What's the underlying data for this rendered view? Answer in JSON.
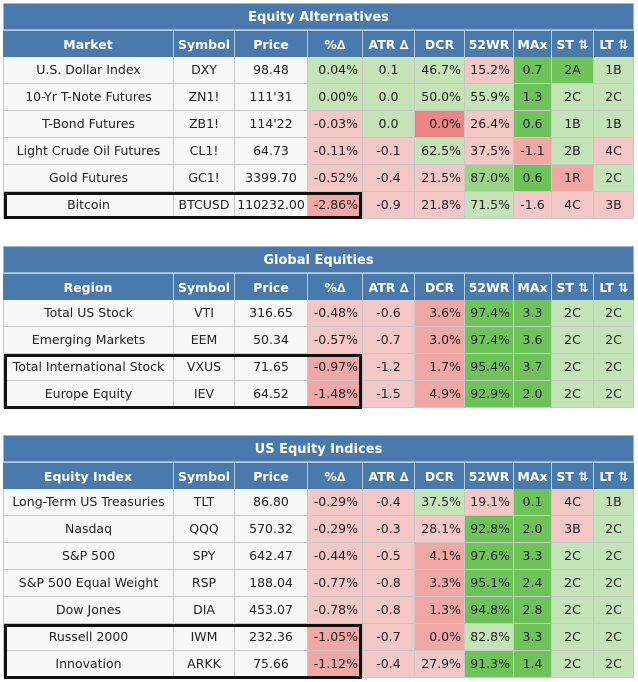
{
  "columns": [
    "Symbol",
    "Price",
    "%∆",
    "ATR ∆",
    "DCR",
    "52WR",
    "MAx",
    "ST ⇅",
    "LT ⇅"
  ],
  "tables": [
    {
      "title": "Equity Alternatives",
      "first_header": "Market",
      "rows": [
        {
          "name": "U.S. Dollar Index",
          "symbol": "DXY",
          "price": "98.48",
          "pct": "0.04%",
          "atr": "0.1",
          "dcr": "46.7%",
          "wr": "15.2%",
          "max": "0.7",
          "st": "2A",
          "lt": "1B",
          "bg": [
            "white",
            "white",
            "white",
            "g-lt",
            "g-lt",
            "g-lt",
            "r-lt",
            "g-dk",
            "g-dk",
            "g-lt"
          ]
        },
        {
          "name": "10-Yr T-Note Futures",
          "symbol": "ZN1!",
          "price": "111'31",
          "pct": "0.00%",
          "atr": "0.0",
          "dcr": "50.0%",
          "wr": "55.9%",
          "max": "1.3",
          "st": "2C",
          "lt": "2C",
          "bg": [
            "white",
            "white",
            "white",
            "g-lt",
            "g-lt",
            "g-lt",
            "g-lt",
            "g-dk",
            "g-lt",
            "g-lt"
          ]
        },
        {
          "name": "T-Bond Futures",
          "symbol": "ZB1!",
          "price": "114'22",
          "pct": "-0.03%",
          "atr": "0.0",
          "dcr": "0.0%",
          "wr": "26.4%",
          "max": "0.6",
          "st": "1B",
          "lt": "1B",
          "bg": [
            "white",
            "white",
            "white",
            "r-lt",
            "g-lt",
            "r-dk",
            "r-lt",
            "g-dk",
            "g-lt",
            "g-lt"
          ]
        },
        {
          "name": "Light Crude Oil Futures",
          "symbol": "CL1!",
          "price": "64.73",
          "pct": "-0.11%",
          "atr": "-0.1",
          "dcr": "62.5%",
          "wr": "37.5%",
          "max": "-1.1",
          "st": "2B",
          "lt": "4C",
          "bg": [
            "white",
            "white",
            "white",
            "r-lt",
            "r-lt",
            "g-lt",
            "r-lt",
            "r-md",
            "g-lt",
            "r-lt"
          ]
        },
        {
          "name": "Gold Futures",
          "symbol": "GC1!",
          "price": "3399.70",
          "pct": "-0.52%",
          "atr": "-0.4",
          "dcr": "21.5%",
          "wr": "87.0%",
          "max": "0.6",
          "st": "1R",
          "lt": "2C",
          "bg": [
            "white",
            "white",
            "white",
            "r-lt",
            "r-lt",
            "r-lt",
            "g-md",
            "g-dk",
            "r-md",
            "g-lt"
          ]
        },
        {
          "name": "Bitcoin",
          "symbol": "BTCUSD",
          "price": "110232.00",
          "pct": "-2.86%",
          "atr": "-0.9",
          "dcr": "21.8%",
          "wr": "71.5%",
          "max": "-1.6",
          "st": "4C",
          "lt": "3B",
          "bg": [
            "white",
            "white",
            "white",
            "r-md",
            "r-lt",
            "r-lt",
            "g-lt",
            "r-lt",
            "r-lt",
            "r-lt"
          ]
        }
      ]
    },
    {
      "title": "Global Equities",
      "first_header": "Region",
      "rows": [
        {
          "name": "Total US Stock",
          "symbol": "VTI",
          "price": "316.65",
          "pct": "-0.48%",
          "atr": "-0.6",
          "dcr": "3.6%",
          "wr": "97.4%",
          "max": "3.3",
          "st": "2C",
          "lt": "2C",
          "bg": [
            "white",
            "white",
            "white",
            "r-lt",
            "r-lt",
            "r-md",
            "g-dk",
            "g-dk",
            "g-lt",
            "g-lt"
          ]
        },
        {
          "name": "Emerging Markets",
          "symbol": "EEM",
          "price": "50.34",
          "pct": "-0.57%",
          "atr": "-0.7",
          "dcr": "3.0%",
          "wr": "97.4%",
          "max": "3.6",
          "st": "2C",
          "lt": "2C",
          "bg": [
            "white",
            "white",
            "white",
            "r-lt",
            "r-lt",
            "r-md",
            "g-dk",
            "g-dk",
            "g-lt",
            "g-lt"
          ]
        },
        {
          "name": "Total International Stock",
          "symbol": "VXUS",
          "price": "71.65",
          "pct": "-0.97%",
          "atr": "-1.2",
          "dcr": "1.7%",
          "wr": "95.4%",
          "max": "3.7",
          "st": "2C",
          "lt": "2C",
          "bg": [
            "white",
            "white",
            "white",
            "r-md",
            "r-lt",
            "r-md",
            "g-dk",
            "g-dk",
            "g-lt",
            "g-lt"
          ]
        },
        {
          "name": "Europe Equity",
          "symbol": "IEV",
          "price": "64.52",
          "pct": "-1.48%",
          "atr": "-1.5",
          "dcr": "4.9%",
          "wr": "92.9%",
          "max": "2.0",
          "st": "2C",
          "lt": "2C",
          "bg": [
            "white",
            "white",
            "white",
            "r-md",
            "r-lt",
            "r-md",
            "g-dk",
            "g-dk",
            "g-lt",
            "g-lt"
          ]
        }
      ]
    },
    {
      "title": "US Equity Indices",
      "first_header": "Equity Index",
      "rows": [
        {
          "name": "Long-Term US Treasuries",
          "symbol": "TLT",
          "price": "86.80",
          "pct": "-0.29%",
          "atr": "-0.4",
          "dcr": "37.5%",
          "wr": "19.1%",
          "max": "0.1",
          "st": "4C",
          "lt": "1B",
          "bg": [
            "white",
            "white",
            "white",
            "r-lt",
            "r-lt",
            "g-lt",
            "r-lt",
            "g-dk",
            "r-lt",
            "g-lt"
          ]
        },
        {
          "name": "Nasdaq",
          "symbol": "QQQ",
          "price": "570.32",
          "pct": "-0.29%",
          "atr": "-0.3",
          "dcr": "28.1%",
          "wr": "92.8%",
          "max": "2.0",
          "st": "3B",
          "lt": "2C",
          "bg": [
            "white",
            "white",
            "white",
            "r-lt",
            "r-lt",
            "r-lt",
            "g-dk",
            "g-dk",
            "r-lt",
            "g-lt"
          ]
        },
        {
          "name": "S&P 500",
          "symbol": "SPY",
          "price": "642.47",
          "pct": "-0.44%",
          "atr": "-0.5",
          "dcr": "4.1%",
          "wr": "97.6%",
          "max": "3.3",
          "st": "2C",
          "lt": "2C",
          "bg": [
            "white",
            "white",
            "white",
            "r-lt",
            "r-lt",
            "r-md",
            "g-dk",
            "g-dk",
            "g-lt",
            "g-lt"
          ]
        },
        {
          "name": "S&P 500 Equal Weight",
          "symbol": "RSP",
          "price": "188.04",
          "pct": "-0.77%",
          "atr": "-0.8",
          "dcr": "3.3%",
          "wr": "95.1%",
          "max": "2.4",
          "st": "2C",
          "lt": "2C",
          "bg": [
            "white",
            "white",
            "white",
            "r-lt",
            "r-lt",
            "r-md",
            "g-dk",
            "g-dk",
            "g-lt",
            "g-lt"
          ]
        },
        {
          "name": "Dow Jones",
          "symbol": "DIA",
          "price": "453.07",
          "pct": "-0.78%",
          "atr": "-0.8",
          "dcr": "1.3%",
          "wr": "94.8%",
          "max": "2.8",
          "st": "2C",
          "lt": "2C",
          "bg": [
            "white",
            "white",
            "white",
            "r-lt",
            "r-lt",
            "r-md",
            "g-dk",
            "g-dk",
            "g-lt",
            "g-lt"
          ]
        },
        {
          "name": "Russell 2000",
          "symbol": "IWM",
          "price": "232.36",
          "pct": "-1.05%",
          "atr": "-0.7",
          "dcr": "0.0%",
          "wr": "82.8%",
          "max": "3.3",
          "st": "2C",
          "lt": "2C",
          "bg": [
            "white",
            "white",
            "white",
            "r-md",
            "r-lt",
            "r-md",
            "g-lt",
            "g-dk",
            "g-lt",
            "g-lt"
          ]
        },
        {
          "name": "Innovation",
          "symbol": "ARKK",
          "price": "75.66",
          "pct": "-1.12%",
          "atr": "-0.4",
          "dcr": "27.9%",
          "wr": "91.3%",
          "max": "1.4",
          "st": "2C",
          "lt": "2C",
          "bg": [
            "white",
            "white",
            "white",
            "r-md",
            "r-lt",
            "r-lt",
            "g-dk",
            "g-dk",
            "g-lt",
            "g-lt"
          ]
        }
      ]
    }
  ]
}
